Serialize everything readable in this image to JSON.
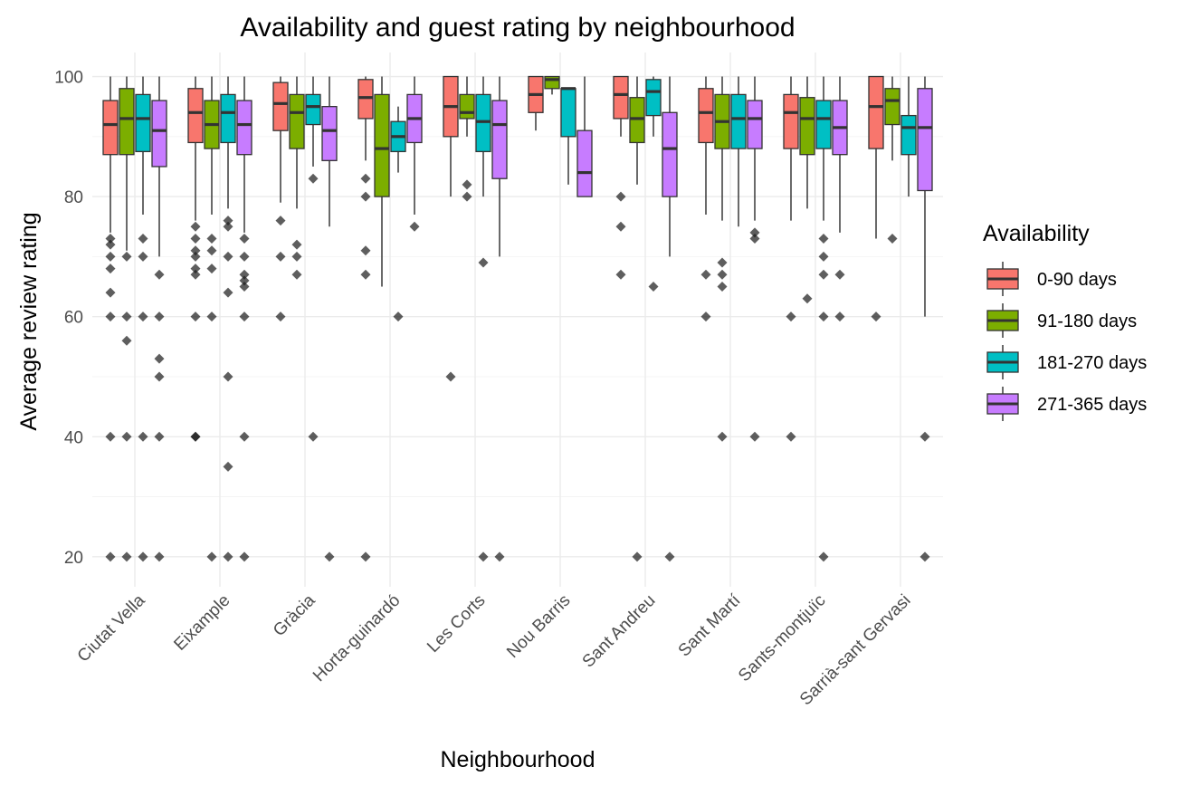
{
  "chart_data": {
    "type": "boxplot",
    "title": "Availability and guest rating by neighbourhood",
    "xlabel": "Neighbourhood",
    "ylabel": "Average review rating",
    "ylim": [
      15,
      104
    ],
    "yticks": [
      20,
      40,
      60,
      80,
      100
    ],
    "grid": true,
    "legend": {
      "title": "Availability",
      "position": "right"
    },
    "categories": [
      "Ciutat Vella",
      "Eixample",
      "Gràcia",
      "Horta-guinardó",
      "Les Corts",
      "Nou Barris",
      "Sant Andreu",
      "Sant Martí",
      "Sants-montjuïc",
      "Sarrià-sant Gervasi"
    ],
    "series": [
      {
        "name": "0-90 days",
        "color": "#F8766D",
        "boxes": [
          {
            "min": 74,
            "q1": 87,
            "median": 92,
            "q3": 96,
            "max": 100,
            "outliers": [
              73,
              72,
              70,
              68,
              64,
              60,
              40,
              20
            ]
          },
          {
            "min": 76,
            "q1": 89,
            "median": 94,
            "q3": 98,
            "max": 100,
            "outliers": [
              75,
              73,
              71,
              70,
              68,
              67,
              60,
              40,
              40
            ]
          },
          {
            "min": 79,
            "q1": 91,
            "median": 95.5,
            "q3": 99,
            "max": 100,
            "outliers": [
              76,
              70,
              60
            ]
          },
          {
            "min": 86,
            "q1": 93,
            "median": 96.5,
            "q3": 99.5,
            "max": 100,
            "outliers": [
              83,
              80,
              71,
              67,
              20
            ]
          },
          {
            "min": 80,
            "q1": 90,
            "median": 95,
            "q3": 100,
            "max": 100,
            "outliers": [
              50
            ]
          },
          {
            "min": 91,
            "q1": 94,
            "median": 97,
            "q3": 100,
            "max": 100,
            "outliers": []
          },
          {
            "min": 90,
            "q1": 93,
            "median": 97,
            "q3": 100,
            "max": 100,
            "outliers": [
              80,
              75,
              67
            ]
          },
          {
            "min": 77,
            "q1": 89,
            "median": 94,
            "q3": 98,
            "max": 100,
            "outliers": [
              67,
              60
            ]
          },
          {
            "min": 76,
            "q1": 88,
            "median": 94,
            "q3": 97,
            "max": 100,
            "outliers": [
              60,
              40
            ]
          },
          {
            "min": 73,
            "q1": 88,
            "median": 95,
            "q3": 100,
            "max": 100,
            "outliers": [
              60
            ]
          }
        ]
      },
      {
        "name": "91-180 days",
        "color": "#7CAE00",
        "boxes": [
          {
            "min": 71,
            "q1": 87,
            "median": 93,
            "q3": 98,
            "max": 100,
            "outliers": [
              70,
              60,
              56,
              40,
              20
            ]
          },
          {
            "min": 77,
            "q1": 88,
            "median": 92,
            "q3": 96,
            "max": 100,
            "outliers": [
              73,
              71,
              68,
              60,
              20
            ]
          },
          {
            "min": 78,
            "q1": 88,
            "median": 94,
            "q3": 97,
            "max": 100,
            "outliers": [
              72,
              70,
              67
            ]
          },
          {
            "min": 65,
            "q1": 80,
            "median": 88,
            "q3": 97,
            "max": 100,
            "outliers": []
          },
          {
            "min": 90,
            "q1": 93,
            "median": 94,
            "q3": 97,
            "max": 100,
            "outliers": [
              82,
              80
            ]
          },
          {
            "min": 97,
            "q1": 98,
            "median": 99.5,
            "q3": 100,
            "max": 100,
            "outliers": []
          },
          {
            "min": 82,
            "q1": 89,
            "median": 93,
            "q3": 96.5,
            "max": 100,
            "outliers": [
              20
            ]
          },
          {
            "min": 76,
            "q1": 88,
            "median": 92.5,
            "q3": 97,
            "max": 100,
            "outliers": [
              69,
              67,
              65,
              40
            ]
          },
          {
            "min": 78,
            "q1": 87,
            "median": 93,
            "q3": 96.5,
            "max": 100,
            "outliers": [
              63
            ]
          },
          {
            "min": 86,
            "q1": 92,
            "median": 96,
            "q3": 98,
            "max": 100,
            "outliers": [
              73
            ]
          }
        ]
      },
      {
        "name": "181-270 days",
        "color": "#00BFC4",
        "boxes": [
          {
            "min": 77,
            "q1": 87.5,
            "median": 93,
            "q3": 97,
            "max": 100,
            "outliers": [
              73,
              70,
              60,
              40,
              20
            ]
          },
          {
            "min": 78,
            "q1": 89,
            "median": 94,
            "q3": 97,
            "max": 100,
            "outliers": [
              76,
              75,
              70,
              64,
              50,
              35,
              20
            ]
          },
          {
            "min": 85,
            "q1": 92,
            "median": 95,
            "q3": 97,
            "max": 100,
            "outliers": [
              83,
              40
            ]
          },
          {
            "min": 84,
            "q1": 87.5,
            "median": 90,
            "q3": 92.5,
            "max": 95,
            "outliers": [
              60
            ]
          },
          {
            "min": 80,
            "q1": 87.5,
            "median": 92.5,
            "q3": 97,
            "max": 100,
            "outliers": [
              69,
              20
            ]
          },
          {
            "min": 82,
            "q1": 90,
            "median": 98,
            "q3": 98,
            "max": 98,
            "outliers": []
          },
          {
            "min": 90,
            "q1": 93.5,
            "median": 97.5,
            "q3": 99.5,
            "max": 100,
            "outliers": [
              65
            ]
          },
          {
            "min": 75,
            "q1": 88,
            "median": 93,
            "q3": 97,
            "max": 100,
            "outliers": []
          },
          {
            "min": 76,
            "q1": 88,
            "median": 93,
            "q3": 96,
            "max": 100,
            "outliers": [
              73,
              70,
              67,
              60,
              20
            ]
          },
          {
            "min": 80,
            "q1": 87,
            "median": 91.5,
            "q3": 93.5,
            "max": 100,
            "outliers": []
          }
        ]
      },
      {
        "name": "271-365 days",
        "color": "#C77CFF",
        "boxes": [
          {
            "min": 70,
            "q1": 85,
            "median": 91,
            "q3": 96,
            "max": 100,
            "outliers": [
              67,
              60,
              53,
              50,
              40,
              20
            ]
          },
          {
            "min": 74,
            "q1": 87,
            "median": 92,
            "q3": 96,
            "max": 100,
            "outliers": [
              73,
              70,
              67,
              66,
              65,
              60,
              40,
              20
            ]
          },
          {
            "min": 75,
            "q1": 86,
            "median": 91,
            "q3": 95,
            "max": 100,
            "outliers": [
              20
            ]
          },
          {
            "min": 77,
            "q1": 89,
            "median": 93,
            "q3": 97,
            "max": 100,
            "outliers": [
              75
            ]
          },
          {
            "min": 70,
            "q1": 83,
            "median": 92,
            "q3": 96,
            "max": 100,
            "outliers": [
              20
            ]
          },
          {
            "min": 80,
            "q1": 80,
            "median": 84,
            "q3": 91,
            "max": 100,
            "outliers": []
          },
          {
            "min": 70,
            "q1": 80,
            "median": 88,
            "q3": 94,
            "max": 100,
            "outliers": [
              20
            ]
          },
          {
            "min": 76,
            "q1": 88,
            "median": 93,
            "q3": 96,
            "max": 100,
            "outliers": [
              74,
              73,
              40
            ]
          },
          {
            "min": 74,
            "q1": 87,
            "median": 91.5,
            "q3": 96,
            "max": 100,
            "outliers": [
              67,
              60
            ]
          },
          {
            "min": 60,
            "q1": 81,
            "median": 91.5,
            "q3": 98,
            "max": 100,
            "outliers": [
              40,
              20
            ]
          }
        ]
      }
    ]
  }
}
